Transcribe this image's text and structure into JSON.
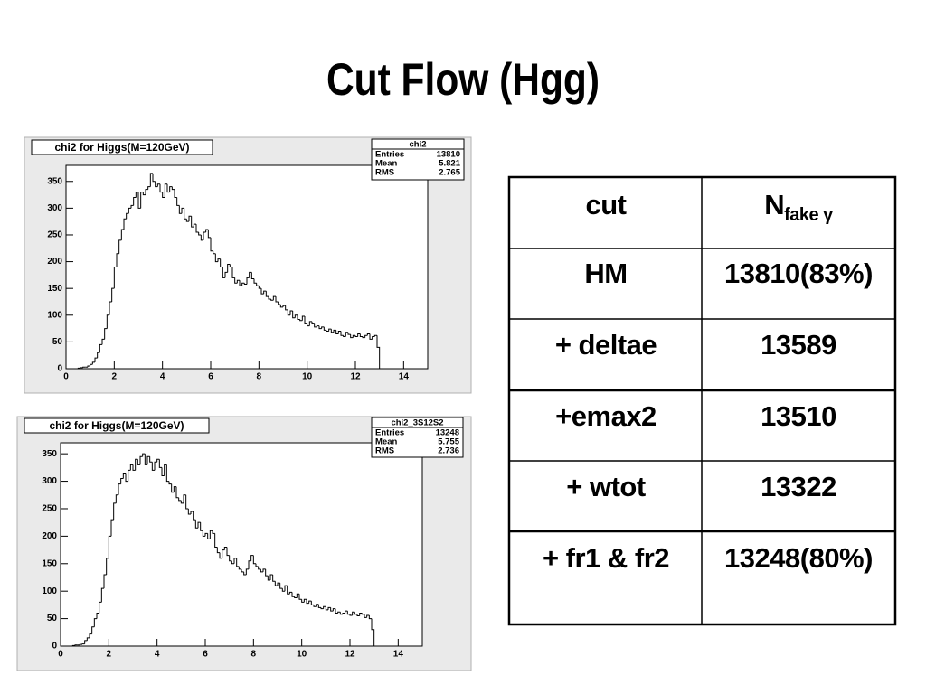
{
  "title": "Cut Flow (Hgg)",
  "chart_data": [
    {
      "type": "histogram",
      "title": "chi2 for Higgs(M=120GeV)",
      "color": "#000000",
      "bins": [
        0,
        0.1,
        0.2,
        0.3,
        0.4,
        0.5,
        0.6,
        0.7,
        0.8,
        0.9,
        1,
        1.1,
        1.2,
        1.3,
        1.4,
        1.5,
        1.6,
        1.7,
        1.8,
        1.9,
        2,
        2.1,
        2.2,
        2.3,
        2.4,
        2.5,
        2.6,
        2.7,
        2.8,
        2.9,
        3,
        3.1,
        3.2,
        3.3,
        3.4,
        3.5,
        3.6,
        3.7,
        3.8,
        3.9,
        4,
        4.1,
        4.2,
        4.3,
        4.4,
        4.5,
        4.6,
        4.7,
        4.8,
        4.9,
        5,
        5.1,
        5.2,
        5.3,
        5.4,
        5.5,
        5.6,
        5.7,
        5.8,
        5.9,
        6,
        6.1,
        6.2,
        6.3,
        6.4,
        6.5,
        6.6,
        6.7,
        6.8,
        6.9,
        7,
        7.1,
        7.2,
        7.3,
        7.4,
        7.5,
        7.6,
        7.7,
        7.8,
        7.9,
        8,
        8.1,
        8.2,
        8.3,
        8.4,
        8.5,
        8.6,
        8.7,
        8.8,
        8.9,
        9,
        9.1,
        9.2,
        9.3,
        9.4,
        9.5,
        9.6,
        9.7,
        9.8,
        9.9,
        10,
        10.1,
        10.2,
        10.3,
        10.4,
        10.5,
        10.6,
        10.7,
        10.8,
        10.9,
        11,
        11.1,
        11.2,
        11.3,
        11.4,
        11.5,
        11.6,
        11.7,
        11.8,
        11.9,
        12,
        12.1,
        12.2,
        12.3,
        12.4,
        12.5,
        12.6,
        12.7,
        12.8,
        12.9,
        13
      ],
      "values": [
        0,
        0,
        0,
        0,
        0,
        1,
        2,
        3,
        3,
        5,
        8,
        12,
        20,
        30,
        45,
        55,
        75,
        100,
        125,
        150,
        190,
        215,
        240,
        260,
        280,
        290,
        300,
        305,
        320,
        330,
        300,
        330,
        325,
        335,
        340,
        365,
        350,
        340,
        345,
        330,
        320,
        345,
        330,
        340,
        335,
        320,
        305,
        290,
        300,
        280,
        275,
        285,
        265,
        270,
        255,
        250,
        240,
        255,
        260,
        245,
        220,
        215,
        200,
        205,
        190,
        170,
        180,
        195,
        190,
        170,
        160,
        165,
        155,
        160,
        158,
        170,
        180,
        168,
        160,
        155,
        150,
        140,
        145,
        135,
        130,
        128,
        135,
        125,
        120,
        115,
        118,
        110,
        100,
        108,
        95,
        100,
        92,
        90,
        98,
        85,
        80,
        88,
        85,
        78,
        80,
        75,
        78,
        72,
        70,
        74,
        68,
        72,
        65,
        70,
        62,
        60,
        68,
        64,
        58,
        62,
        60,
        65,
        60,
        58,
        62,
        65,
        55,
        60,
        62,
        40
      ],
      "xlim": [
        0,
        15
      ],
      "ylim": [
        0,
        380
      ],
      "xticks": [
        0,
        2,
        4,
        6,
        8,
        10,
        12,
        14
      ],
      "yticks": [
        0,
        50,
        100,
        150,
        200,
        250,
        300,
        350
      ],
      "stats": {
        "name": "chi2",
        "rows": [
          {
            "label": "Entries",
            "value": 13810
          },
          {
            "label": "Mean",
            "value": 5.821
          },
          {
            "label": "RMS",
            "value": 2.765
          }
        ]
      }
    },
    {
      "type": "histogram",
      "title": "chi2 for Higgs(M=120GeV)",
      "color": "#000000",
      "bins": [
        0,
        0.1,
        0.2,
        0.3,
        0.4,
        0.5,
        0.6,
        0.7,
        0.8,
        0.9,
        1,
        1.1,
        1.2,
        1.3,
        1.4,
        1.5,
        1.6,
        1.7,
        1.8,
        1.9,
        2,
        2.1,
        2.2,
        2.3,
        2.4,
        2.5,
        2.6,
        2.7,
        2.8,
        2.9,
        3,
        3.1,
        3.2,
        3.3,
        3.4,
        3.5,
        3.6,
        3.7,
        3.8,
        3.9,
        4,
        4.1,
        4.2,
        4.3,
        4.4,
        4.5,
        4.6,
        4.7,
        4.8,
        4.9,
        5,
        5.1,
        5.2,
        5.3,
        5.4,
        5.5,
        5.6,
        5.7,
        5.8,
        5.9,
        6,
        6.1,
        6.2,
        6.3,
        6.4,
        6.5,
        6.6,
        6.7,
        6.8,
        6.9,
        7,
        7.1,
        7.2,
        7.3,
        7.4,
        7.5,
        7.6,
        7.7,
        7.8,
        7.9,
        8,
        8.1,
        8.2,
        8.3,
        8.4,
        8.5,
        8.6,
        8.7,
        8.8,
        8.9,
        9,
        9.1,
        9.2,
        9.3,
        9.4,
        9.5,
        9.6,
        9.7,
        9.8,
        9.9,
        10,
        10.1,
        10.2,
        10.3,
        10.4,
        10.5,
        10.6,
        10.7,
        10.8,
        10.9,
        11,
        11.1,
        11.2,
        11.3,
        11.4,
        11.5,
        11.6,
        11.7,
        11.8,
        11.9,
        12,
        12.1,
        12.2,
        12.3,
        12.4,
        12.5,
        12.6,
        12.7,
        12.8,
        12.9,
        13
      ],
      "values": [
        0,
        0,
        0,
        0,
        0,
        1,
        2,
        2,
        3,
        4,
        10,
        15,
        22,
        35,
        50,
        60,
        80,
        105,
        130,
        160,
        200,
        230,
        260,
        275,
        295,
        305,
        315,
        300,
        320,
        330,
        320,
        340,
        330,
        345,
        350,
        330,
        345,
        335,
        320,
        335,
        340,
        325,
        310,
        330,
        300,
        295,
        280,
        290,
        270,
        265,
        260,
        275,
        250,
        240,
        245,
        230,
        215,
        225,
        210,
        200,
        205,
        195,
        210,
        205,
        180,
        170,
        160,
        175,
        180,
        165,
        155,
        150,
        160,
        145,
        140,
        135,
        130,
        140,
        155,
        165,
        150,
        145,
        140,
        135,
        140,
        128,
        120,
        130,
        118,
        110,
        115,
        105,
        100,
        110,
        95,
        98,
        90,
        88,
        95,
        85,
        80,
        85,
        78,
        82,
        75,
        72,
        76,
        70,
        68,
        72,
        66,
        70,
        64,
        68,
        60,
        62,
        58,
        60,
        64,
        58,
        56,
        62,
        58,
        55,
        60,
        58,
        52,
        56,
        50,
        30
      ],
      "xlim": [
        0,
        15
      ],
      "ylim": [
        0,
        370
      ],
      "xticks": [
        0,
        2,
        4,
        6,
        8,
        10,
        12,
        14
      ],
      "yticks": [
        0,
        50,
        100,
        150,
        200,
        250,
        300,
        350
      ],
      "stats": {
        "name": "chi2_3S12S2",
        "rows": [
          {
            "label": "Entries",
            "value": 13248
          },
          {
            "label": "Mean",
            "value": 5.755
          },
          {
            "label": "RMS",
            "value": 2.736
          }
        ]
      }
    }
  ],
  "table": {
    "header": [
      "cut",
      {
        "main": "N",
        "sub": "fake γ"
      }
    ],
    "rows": [
      [
        "HM",
        "13810(83%)"
      ],
      [
        "+ deltae",
        "13589"
      ],
      [
        "+emax2",
        "13510"
      ],
      [
        "+ wtot",
        "13322"
      ],
      [
        "+ fr1 & fr2",
        "13248(80%)"
      ]
    ]
  }
}
